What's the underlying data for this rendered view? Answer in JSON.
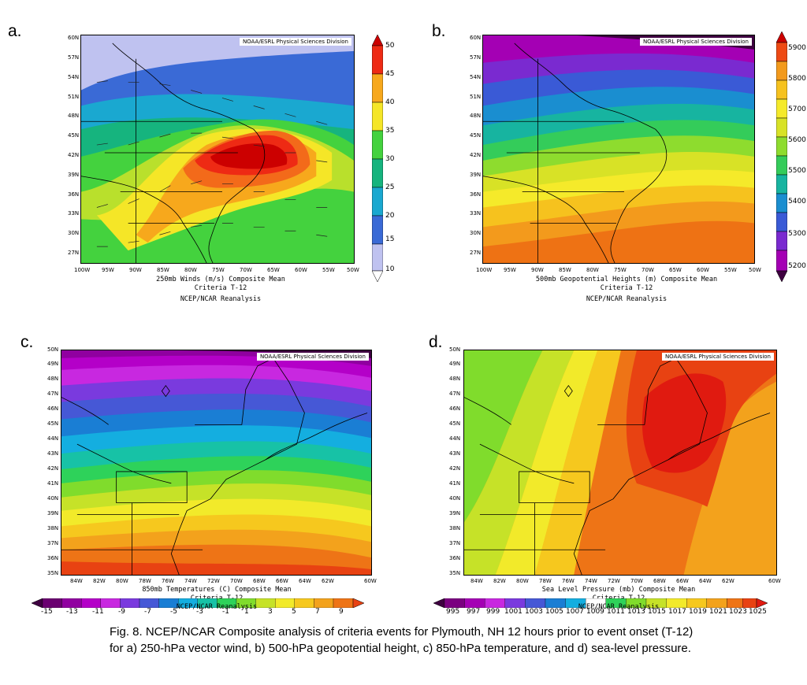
{
  "figure_caption": "Fig. 8.  NCEP/NCAR Composite analysis of criteria events for Plymouth, NH 12 hours prior to event onset (T-12) for a) 250-hPa vector wind, b) 500-hPa geopotential height, c) 850-hPa temperature, and d) sea-level pressure.",
  "panels": [
    {
      "letter": "a.",
      "source": "NOAA/ESRL Physical Sciences Division",
      "title": "250mb Winds (m/s)    Composite Mean",
      "subtitle": "Criteria T-12",
      "credit": "NCEP/NCAR Reanalysis",
      "lon_ticks": [
        "100W",
        "95W",
        "90W",
        "85W",
        "80W",
        "75W",
        "70W",
        "65W",
        "60W",
        "55W",
        "50W"
      ],
      "lat_ticks": [
        "60N",
        "57N",
        "54N",
        "51N",
        "48N",
        "45N",
        "42N",
        "39N",
        "36N",
        "33N",
        "30N",
        "27N"
      ],
      "colorbar": [
        "50",
        "45",
        "40",
        "35",
        "30",
        "25",
        "20",
        "15",
        "10"
      ],
      "colors": [
        "#cc0000",
        "#ee2a14",
        "#f36a1a",
        "#f7a81c",
        "#f5e627",
        "#b9e02c",
        "#44d23e",
        "#16b47e",
        "#1aa8d0",
        "#3a6ad6",
        "#8b90e3",
        "#bfc2f0",
        "#ffffff"
      ]
    },
    {
      "letter": "b.",
      "source": "NOAA/ESRL Physical Sciences Division",
      "title": "500mb Geopotential Heights (m)    Composite Mean",
      "subtitle": "Criteria T-12",
      "credit": "NCEP/NCAR Reanalysis",
      "lon_ticks": [
        "100W",
        "95W",
        "90W",
        "85W",
        "80W",
        "75W",
        "70W",
        "65W",
        "60W",
        "55W",
        "50W"
      ],
      "lat_ticks": [
        "60N",
        "57N",
        "54N",
        "51N",
        "48N",
        "45N",
        "42N",
        "39N",
        "36N",
        "33N",
        "30N",
        "27N"
      ],
      "colorbar": [
        "5900",
        "5800",
        "5700",
        "5600",
        "5500",
        "5400",
        "5300",
        "5200"
      ],
      "colors": [
        "#3e0040",
        "#7a007a",
        "#a400b4",
        "#7a2ad0",
        "#3a5ad6",
        "#1a8ed0",
        "#17b4a0",
        "#34cc5a",
        "#8edc2e",
        "#d8e226",
        "#f5ea2a",
        "#f6c21e",
        "#f39a1c",
        "#ee7214"
      ]
    },
    {
      "letter": "c.",
      "source": "NOAA/ESRL Physical Sciences Division",
      "title": "850mb Temperatures (C)    Composite Mean",
      "subtitle": "Criteria T-12",
      "credit": "NCEP/NCAR Reanalysis",
      "lon_ticks": [
        "84W",
        "82W",
        "80W",
        "78W",
        "76W",
        "74W",
        "72W",
        "70W",
        "68W",
        "66W",
        "64W",
        "62W",
        "60W"
      ],
      "lat_ticks": [
        "50N",
        "49N",
        "48N",
        "47N",
        "46N",
        "45N",
        "44N",
        "43N",
        "42N",
        "41N",
        "40N",
        "39N",
        "38N",
        "37N",
        "36N",
        "35N"
      ],
      "colorbar": [
        "-15",
        "-13",
        "-11",
        "-9",
        "-7",
        "-5",
        "-3",
        "-1",
        "1",
        "3",
        "5",
        "7",
        "9"
      ],
      "colors": [
        "#3e0040",
        "#6a0070",
        "#9000a0",
        "#b400c8",
        "#c828e0",
        "#7a3ade",
        "#4658d6",
        "#1a7ed4",
        "#14aee0",
        "#17c2a6",
        "#2ed25a",
        "#80dc2c",
        "#c6e228",
        "#f2ea2a",
        "#f6c81e",
        "#f3a21c",
        "#ee7416",
        "#e84212"
      ]
    },
    {
      "letter": "d.",
      "source": "NOAA/ESRL Physical Sciences Division",
      "title": "Sea Level Pressure (mb)    Composite Mean",
      "subtitle": "Criteria T-12",
      "credit": "NCEP/NCAR Reanalysis",
      "lon_ticks": [
        "84W",
        "82W",
        "80W",
        "78W",
        "76W",
        "74W",
        "72W",
        "70W",
        "68W",
        "66W",
        "64W",
        "62W",
        "60W"
      ],
      "lat_ticks": [
        "50N",
        "49N",
        "48N",
        "47N",
        "46N",
        "45N",
        "44N",
        "43N",
        "42N",
        "41N",
        "40N",
        "39N",
        "38N",
        "37N",
        "36N",
        "35N"
      ],
      "colorbar": [
        "995",
        "997",
        "999",
        "1001",
        "1003",
        "1005",
        "1007",
        "1009",
        "1011",
        "1013",
        "1015",
        "1017",
        "1019",
        "1021",
        "1023",
        "1025"
      ],
      "colors": [
        "#3e0040",
        "#7a0080",
        "#c828e0",
        "#4658d6",
        "#14aee0",
        "#17c2a6",
        "#2ed25a",
        "#80dc2c",
        "#c6e228",
        "#f2ea2a",
        "#f6c81e",
        "#f3a21c",
        "#ee7416",
        "#e84212",
        "#e01a10"
      ]
    }
  ]
}
